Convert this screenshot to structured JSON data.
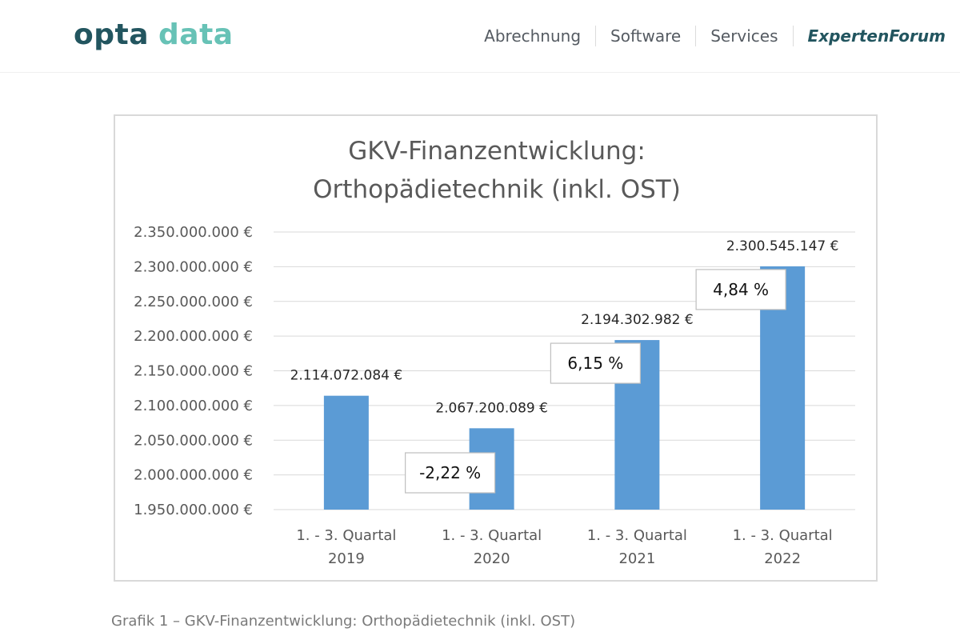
{
  "header": {
    "logo": {
      "word1": "opta",
      "word2": "data"
    },
    "nav": [
      {
        "label": "Abrechnung",
        "active": false
      },
      {
        "label": "Software",
        "active": false
      },
      {
        "label": "Services",
        "active": false
      },
      {
        "label": "ExpertenForum",
        "active": true
      }
    ]
  },
  "chart_data": {
    "type": "bar",
    "title_lines": [
      "GKV-Finanzentwicklung:",
      "Orthopädietechnik (inkl. OST)"
    ],
    "categories": [
      [
        "1. - 3. Quartal",
        "2019"
      ],
      [
        "1. - 3. Quartal",
        "2020"
      ],
      [
        "1. - 3. Quartal",
        "2021"
      ],
      [
        "1. - 3. Quartal",
        "2022"
      ]
    ],
    "values": [
      2114072084,
      2067200089,
      2194302982,
      2300545147
    ],
    "value_labels": [
      "2.114.072.084 €",
      "2.067.200.089 €",
      "2.194.302.982 €",
      "2.300.545.147 €"
    ],
    "yticks": [
      1950000000,
      2000000000,
      2050000000,
      2100000000,
      2150000000,
      2200000000,
      2250000000,
      2300000000,
      2350000000
    ],
    "ytick_labels": [
      "1.950.000.000 €",
      "2.000.000.000 €",
      "2.050.000.000 €",
      "2.100.000.000 €",
      "2.150.000.000 €",
      "2.200.000.000 €",
      "2.250.000.000 €",
      "2.300.000.000 €",
      "2.350.000.000 €"
    ],
    "ylim": [
      1950000000,
      2350000000
    ],
    "grid": true,
    "bar_color": "#5b9bd5",
    "annotations": [
      {
        "text": "-2,22 %",
        "category_index": 1
      },
      {
        "text": "6,15 %",
        "category_index": 2
      },
      {
        "text": "4,84 %",
        "category_index": 3
      }
    ]
  },
  "caption": "Grafik 1 – GKV-Finanzentwicklung: Orthopädietechnik (inkl. OST)"
}
